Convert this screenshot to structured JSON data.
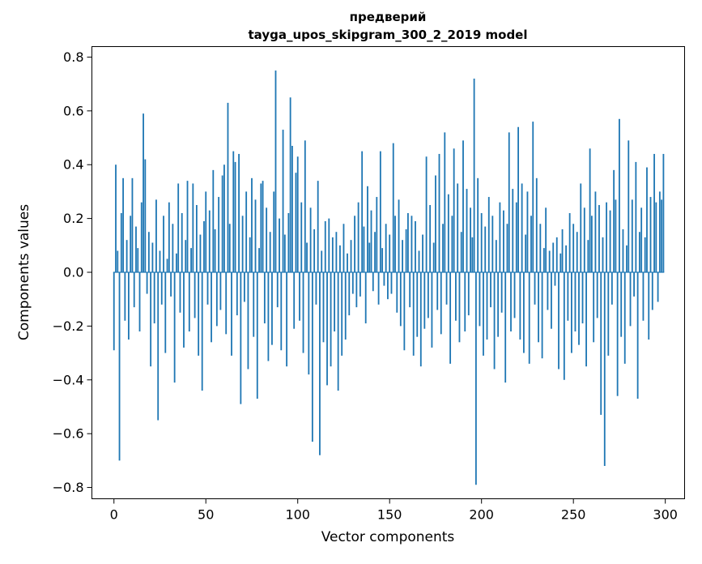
{
  "chart": {
    "title": "предверий",
    "subtitle": "tayga_upos_skipgram_300_2_2019 model",
    "xlabel": "Vector components",
    "ylabel": "Components values"
  },
  "chart_data": {
    "type": "bar",
    "title": "предверий",
    "subtitle": "tayga_upos_skipgram_300_2_2019 model",
    "xlabel": "Vector components",
    "ylabel": "Components values",
    "bar_color": "#1f77b4",
    "legend": "none",
    "grid": false,
    "x_start": 0,
    "xlim": [
      -12,
      310.5
    ],
    "ylim": [
      -0.842,
      0.839
    ],
    "xticks": [
      0,
      50,
      100,
      150,
      200,
      250,
      300
    ],
    "yticks": [
      -0.8,
      -0.6,
      -0.4,
      -0.2,
      0,
      0.2,
      0.4,
      0.6,
      0.8
    ],
    "values": [
      -0.29,
      0.4,
      0.08,
      -0.7,
      0.22,
      0.35,
      -0.18,
      0.12,
      -0.25,
      0.21,
      0.35,
      -0.13,
      0.17,
      0.09,
      -0.22,
      0.26,
      0.59,
      0.42,
      -0.08,
      0.15,
      -0.35,
      0.11,
      -0.19,
      0.27,
      -0.55,
      0.08,
      -0.12,
      0.21,
      -0.3,
      0.05,
      0.26,
      -0.09,
      0.18,
      -0.41,
      0.07,
      0.33,
      -0.15,
      0.22,
      -0.28,
      0.12,
      0.34,
      -0.22,
      0.09,
      0.33,
      -0.17,
      0.25,
      -0.31,
      0.14,
      -0.44,
      0.19,
      0.3,
      -0.12,
      0.23,
      -0.26,
      0.38,
      0.16,
      -0.2,
      0.28,
      -0.14,
      0.36,
      0.4,
      -0.23,
      0.63,
      0.18,
      -0.31,
      0.45,
      0.41,
      -0.16,
      0.44,
      -0.49,
      0.21,
      -0.11,
      0.3,
      -0.36,
      0.13,
      0.35,
      -0.24,
      0.27,
      -0.47,
      0.09,
      0.33,
      0.34,
      -0.19,
      0.24,
      -0.33,
      0.15,
      -0.27,
      0.3,
      0.75,
      -0.13,
      0.2,
      -0.29,
      0.53,
      0.14,
      -0.35,
      0.22,
      0.65,
      0.47,
      -0.21,
      0.37,
      0.43,
      -0.18,
      0.26,
      -0.3,
      0.49,
      0.11,
      -0.38,
      0.24,
      -0.63,
      0.16,
      -0.12,
      0.34,
      -0.68,
      0.08,
      -0.26,
      0.19,
      -0.42,
      0.2,
      -0.35,
      0.13,
      -0.22,
      0.15,
      -0.44,
      0.1,
      -0.31,
      0.18,
      -0.25,
      0.07,
      -0.16,
      0.12,
      -0.08,
      0.21,
      -0.13,
      0.26,
      -0.09,
      0.45,
      0.17,
      -0.19,
      0.32,
      0.11,
      0.23,
      -0.07,
      0.15,
      0.28,
      -0.12,
      0.45,
      0.09,
      -0.05,
      0.18,
      -0.1,
      0.14,
      -0.08,
      0.48,
      0.21,
      -0.15,
      0.27,
      -0.2,
      0.12,
      -0.29,
      0.16,
      0.22,
      -0.13,
      0.21,
      -0.31,
      0.19,
      -0.24,
      0.08,
      -0.35,
      0.14,
      -0.21,
      0.43,
      -0.17,
      0.25,
      -0.28,
      0.11,
      0.36,
      -0.14,
      0.44,
      -0.23,
      0.18,
      0.52,
      -0.12,
      0.29,
      -0.34,
      0.21,
      0.46,
      -0.18,
      0.33,
      -0.26,
      0.15,
      0.49,
      -0.22,
      0.31,
      -0.16,
      0.24,
      0.13,
      0.72,
      -0.79,
      0.35,
      -0.2,
      0.22,
      -0.31,
      0.17,
      -0.25,
      0.28,
      -0.13,
      0.21,
      -0.36,
      0.12,
      -0.24,
      0.26,
      -0.15,
      0.23,
      -0.41,
      0.18,
      0.52,
      -0.22,
      0.31,
      -0.17,
      0.26,
      0.54,
      -0.25,
      0.33,
      -0.3,
      0.14,
      0.3,
      -0.34,
      0.21,
      0.56,
      -0.12,
      0.35,
      -0.26,
      0.18,
      -0.32,
      0.09,
      0.24,
      -0.14,
      0.08,
      -0.21,
      0.11,
      -0.05,
      0.13,
      -0.36,
      0.07,
      0.16,
      -0.4,
      0.1,
      -0.18,
      0.22,
      -0.3,
      0.18,
      -0.22,
      0.15,
      -0.27,
      0.33,
      -0.19,
      0.24,
      -0.35,
      0.12,
      0.46,
      0.21,
      -0.26,
      0.3,
      -0.17,
      0.25,
      -0.53,
      0.13,
      -0.72,
      0.26,
      -0.31,
      0.23,
      -0.12,
      0.38,
      0.27,
      -0.46,
      0.57,
      -0.24,
      0.16,
      -0.34,
      0.1,
      0.49,
      -0.2,
      0.27,
      -0.09,
      0.41,
      -0.47,
      0.15,
      0.24,
      -0.18,
      0.13,
      0.39,
      -0.25,
      0.28,
      -0.14,
      0.44,
      0.26,
      -0.11,
      0.3,
      0.27,
      0.44
    ]
  }
}
